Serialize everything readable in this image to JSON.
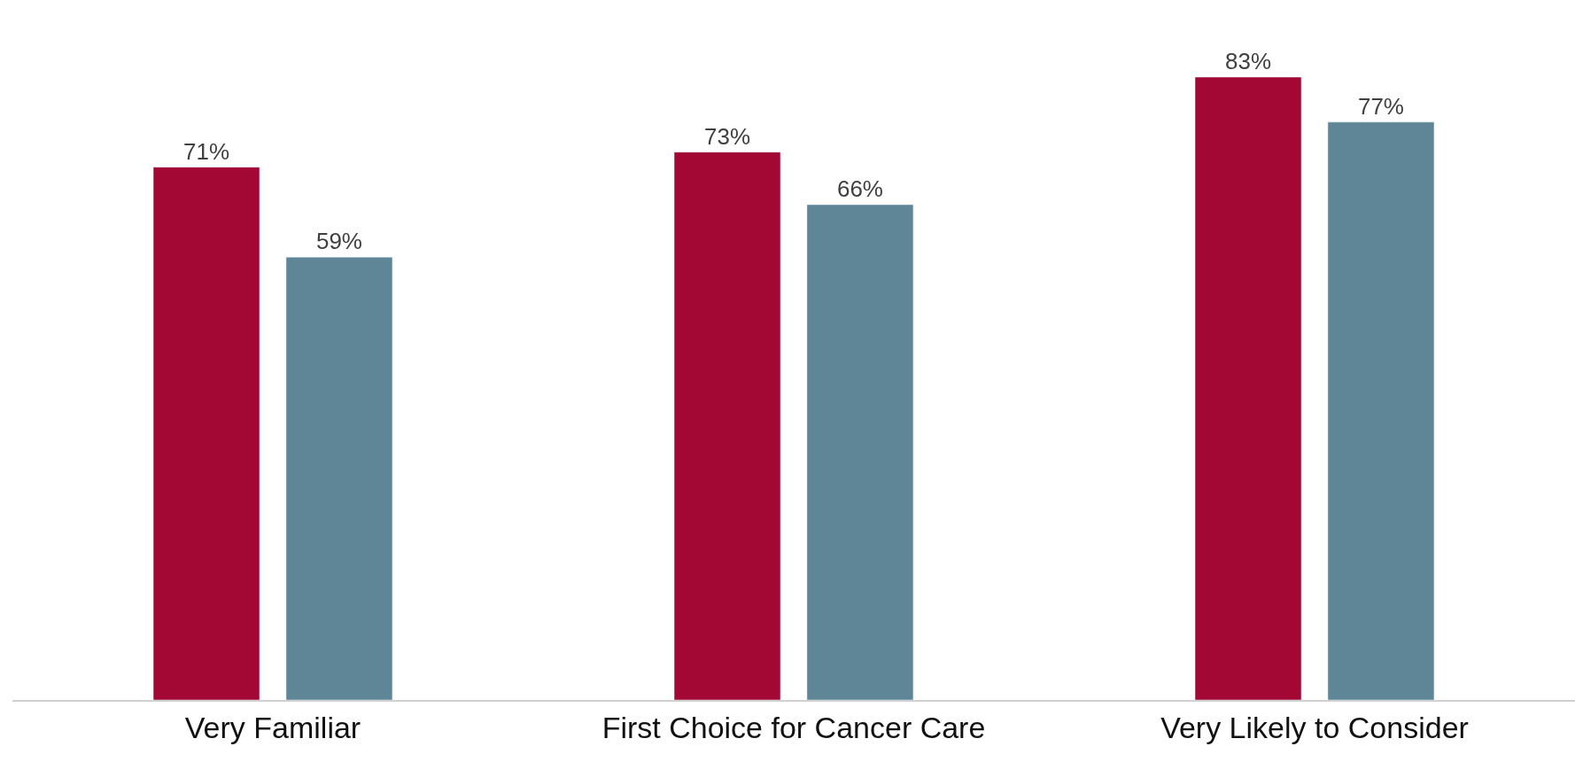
{
  "chart_data": {
    "type": "bar",
    "categories": [
      "Very Familiar",
      "First Choice for Cancer Care",
      "Very Likely to Consider"
    ],
    "series": [
      {
        "color": "#a30834",
        "values": [
          71,
          73,
          83
        ],
        "value_labels": [
          "71%",
          "73%",
          "83%"
        ]
      },
      {
        "color": "#5e8696",
        "values": [
          59,
          66,
          77
        ],
        "value_labels": [
          "59%",
          "66%",
          "77%"
        ]
      }
    ]
  }
}
